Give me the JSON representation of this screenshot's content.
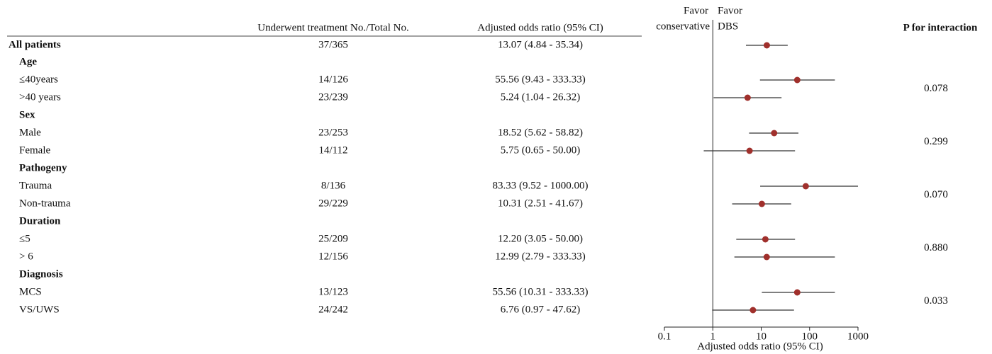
{
  "chart_data": {
    "type": "forest",
    "column_headers": [
      "Underwent treatment No./Total No.",
      "Adjusted odds ratio (95% CI)"
    ],
    "favor_left": [
      "Favor",
      "conservative"
    ],
    "favor_right": [
      "Favor",
      "DBS"
    ],
    "p_header": "P for interaction",
    "xlabel": "Adjusted odds ratio (95% CI)",
    "xlim": [
      0.1,
      1000
    ],
    "xticks": [
      0.1,
      1,
      10,
      100,
      1000
    ],
    "log_x": true,
    "reference_line": 1,
    "color": "#a0302c",
    "line_color": "#333333",
    "overall": {
      "name": "All patients",
      "count": "37/365",
      "value": 13.07,
      "lower": 4.84,
      "upper": 35.34,
      "value_label": "13.07 (4.84 - 35.34)"
    },
    "subgroups": [
      {
        "name": "Age",
        "categories": [
          "≤40years",
          ">40 years"
        ],
        "counts": [
          "14/126",
          "23/239"
        ],
        "values": [
          55.56,
          5.24
        ],
        "lower": [
          9.43,
          1.04
        ],
        "upper": [
          333.33,
          26.32
        ],
        "value_labels": [
          "55.56 (9.43 - 333.33)",
          "5.24 (1.04 - 26.32)"
        ],
        "p_value": 0.078
      },
      {
        "name": "Sex",
        "categories": [
          "Male",
          "Female"
        ],
        "counts": [
          "23/253",
          "14/112"
        ],
        "values": [
          18.52,
          5.75
        ],
        "lower": [
          5.62,
          0.65
        ],
        "upper": [
          58.82,
          50.0
        ],
        "value_labels": [
          "18.52 (5.62 - 58.82)",
          "5.75 (0.65 - 50.00)"
        ],
        "p_value": 0.299
      },
      {
        "name": "Pathogeny",
        "categories": [
          "Trauma",
          "Non-trauma"
        ],
        "counts": [
          "8/136",
          "29/229"
        ],
        "values": [
          83.33,
          10.31
        ],
        "lower": [
          9.52,
          2.51
        ],
        "upper": [
          1000.0,
          41.67
        ],
        "value_labels": [
          "83.33 (9.52 - 1000.00)",
          "10.31 (2.51 - 41.67)"
        ],
        "p_value": 0.07,
        "p_value_label": "0.070"
      },
      {
        "name": "Duration",
        "categories": [
          "≤5",
          "> 6"
        ],
        "counts": [
          "25/209",
          "12/156"
        ],
        "values": [
          12.2,
          12.99
        ],
        "lower": [
          3.05,
          2.79
        ],
        "upper": [
          50.0,
          333.33
        ],
        "value_labels": [
          "12.20 (3.05 - 50.00)",
          "12.99 (2.79 - 333.33)"
        ],
        "p_value": 0.88,
        "p_value_label": "0.880"
      },
      {
        "name": "Diagnosis",
        "categories": [
          "MCS",
          "VS/UWS"
        ],
        "counts": [
          "13/123",
          "24/242"
        ],
        "values": [
          55.56,
          6.76
        ],
        "lower": [
          10.31,
          0.97
        ],
        "upper": [
          333.33,
          47.62
        ],
        "value_labels": [
          "55.56 (10.31 - 333.33)",
          "6.76 (0.97 - 47.62)"
        ],
        "p_value": 0.033
      }
    ]
  }
}
